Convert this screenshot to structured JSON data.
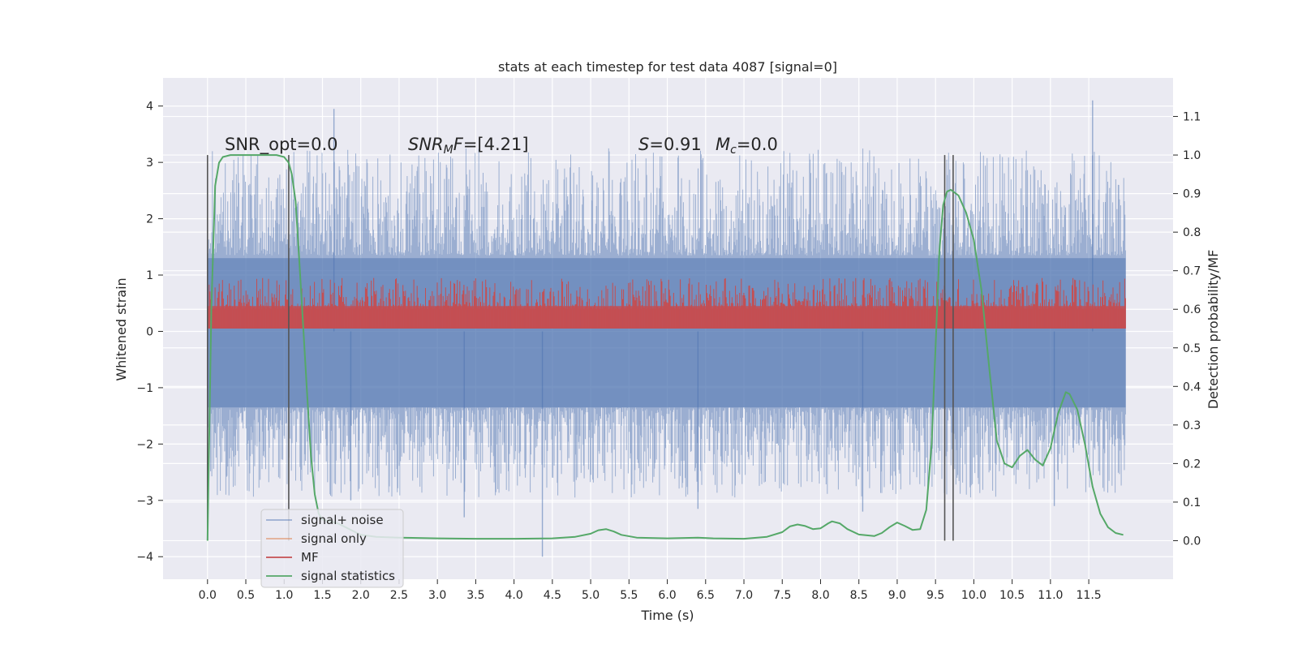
{
  "chart_data": {
    "type": "line",
    "title": "stats at each timestep for test data 4087 [signal=0]",
    "xlabel": "Time (s)",
    "ylabel": "Whitened strain",
    "y2label": "Detection probability/MF",
    "xlim": [
      -0.58,
      12.6
    ],
    "ylim": [
      -4.4,
      4.5
    ],
    "y2lim": [
      -0.1,
      1.2
    ],
    "grid": true,
    "x_ticks": [
      "0.0",
      "0.5",
      "1.0",
      "1.5",
      "2.0",
      "2.5",
      "3.0",
      "3.5",
      "4.0",
      "4.5",
      "5.0",
      "5.5",
      "6.0",
      "6.5",
      "7.0",
      "7.5",
      "8.0",
      "8.5",
      "9.0",
      "9.5",
      "10.0",
      "10.5",
      "11.0",
      "11.5"
    ],
    "y_ticks": [
      "4",
      "3",
      "2",
      "1",
      "0",
      "−1",
      "−2",
      "−3",
      "−4"
    ],
    "y2_ticks": [
      "1.1",
      "1.0",
      "0.9",
      "0.8",
      "0.7",
      "0.6",
      "0.5",
      "0.4",
      "0.3",
      "0.2",
      "0.1",
      "0.0"
    ],
    "annotations": {
      "snr_opt": "SNR_opt=0.0",
      "snr_mf_sym": "SNR",
      "snr_mf_sub": "M",
      "snr_mf_rest": "F",
      "snr_mf_value": "=[4.21]",
      "s_sym": "S",
      "s_value": "=0.91",
      "mc_sym": "M",
      "mc_sub": "c",
      "mc_value": "=0.0"
    },
    "vertical_lines_x": [
      0.0,
      1.06,
      9.62,
      9.73
    ],
    "noise": {
      "name": "signal+ noise",
      "color": "#4c72b0",
      "x_range": [
        0,
        11.98
      ],
      "envelope_upper": [
        1.3,
        1.35
      ],
      "envelope_lower": [
        -1.35,
        -1.3
      ],
      "spikes": [
        [
          1.65,
          3.95
        ],
        [
          11.55,
          4.1
        ],
        [
          3.35,
          -3.3
        ],
        [
          4.37,
          -4.0
        ],
        [
          11.05,
          -3.1
        ],
        [
          8.55,
          -3.2
        ],
        [
          1.87,
          -3.0
        ],
        [
          6.4,
          -3.15
        ]
      ]
    },
    "mf": {
      "name": "MF",
      "color": "#c44e52",
      "x_range": [
        0,
        11.98
      ],
      "band": [
        0.05,
        0.65
      ]
    },
    "signal_only": {
      "name": "signal only",
      "color": "#dd8452"
    },
    "signal_statistics": {
      "name": "signal statistics",
      "color": "#55a868",
      "points": [
        [
          0.0,
          0.0
        ],
        [
          0.05,
          0.6
        ],
        [
          0.1,
          0.92
        ],
        [
          0.15,
          0.98
        ],
        [
          0.2,
          0.995
        ],
        [
          0.3,
          1.0
        ],
        [
          0.5,
          1.0
        ],
        [
          0.7,
          1.0
        ],
        [
          0.9,
          1.0
        ],
        [
          1.0,
          0.995
        ],
        [
          1.06,
          0.98
        ],
        [
          1.1,
          0.95
        ],
        [
          1.15,
          0.88
        ],
        [
          1.2,
          0.72
        ],
        [
          1.25,
          0.55
        ],
        [
          1.3,
          0.38
        ],
        [
          1.35,
          0.22
        ],
        [
          1.4,
          0.12
        ],
        [
          1.45,
          0.07
        ],
        [
          1.5,
          0.055
        ],
        [
          1.6,
          0.05
        ],
        [
          1.7,
          0.045
        ],
        [
          1.8,
          0.035
        ],
        [
          1.9,
          0.025
        ],
        [
          2.0,
          0.015
        ],
        [
          2.2,
          0.01
        ],
        [
          2.5,
          0.008
        ],
        [
          3.0,
          0.006
        ],
        [
          3.5,
          0.005
        ],
        [
          4.0,
          0.005
        ],
        [
          4.5,
          0.006
        ],
        [
          4.8,
          0.01
        ],
        [
          5.0,
          0.018
        ],
        [
          5.1,
          0.027
        ],
        [
          5.2,
          0.03
        ],
        [
          5.3,
          0.024
        ],
        [
          5.4,
          0.015
        ],
        [
          5.6,
          0.008
        ],
        [
          6.0,
          0.006
        ],
        [
          6.4,
          0.008
        ],
        [
          6.6,
          0.006
        ],
        [
          7.0,
          0.005
        ],
        [
          7.3,
          0.01
        ],
        [
          7.5,
          0.022
        ],
        [
          7.6,
          0.037
        ],
        [
          7.7,
          0.042
        ],
        [
          7.8,
          0.038
        ],
        [
          7.9,
          0.03
        ],
        [
          8.0,
          0.032
        ],
        [
          8.1,
          0.045
        ],
        [
          8.15,
          0.05
        ],
        [
          8.25,
          0.045
        ],
        [
          8.35,
          0.03
        ],
        [
          8.5,
          0.016
        ],
        [
          8.7,
          0.012
        ],
        [
          8.8,
          0.02
        ],
        [
          8.9,
          0.035
        ],
        [
          9.0,
          0.047
        ],
        [
          9.1,
          0.038
        ],
        [
          9.2,
          0.028
        ],
        [
          9.3,
          0.03
        ],
        [
          9.38,
          0.08
        ],
        [
          9.45,
          0.25
        ],
        [
          9.5,
          0.5
        ],
        [
          9.55,
          0.75
        ],
        [
          9.6,
          0.87
        ],
        [
          9.65,
          0.905
        ],
        [
          9.7,
          0.91
        ],
        [
          9.8,
          0.895
        ],
        [
          9.9,
          0.85
        ],
        [
          10.0,
          0.78
        ],
        [
          10.1,
          0.65
        ],
        [
          10.2,
          0.45
        ],
        [
          10.3,
          0.26
        ],
        [
          10.4,
          0.2
        ],
        [
          10.5,
          0.19
        ],
        [
          10.6,
          0.22
        ],
        [
          10.7,
          0.235
        ],
        [
          10.8,
          0.21
        ],
        [
          10.9,
          0.195
        ],
        [
          11.0,
          0.24
        ],
        [
          11.1,
          0.33
        ],
        [
          11.2,
          0.385
        ],
        [
          11.25,
          0.38
        ],
        [
          11.35,
          0.34
        ],
        [
          11.45,
          0.25
        ],
        [
          11.55,
          0.14
        ],
        [
          11.65,
          0.07
        ],
        [
          11.75,
          0.035
        ],
        [
          11.85,
          0.02
        ],
        [
          11.95,
          0.015
        ]
      ]
    },
    "legend": {
      "placement": "lower-left",
      "entries": [
        "signal+ noise",
        "signal only",
        "MF",
        "signal statistics"
      ]
    }
  }
}
